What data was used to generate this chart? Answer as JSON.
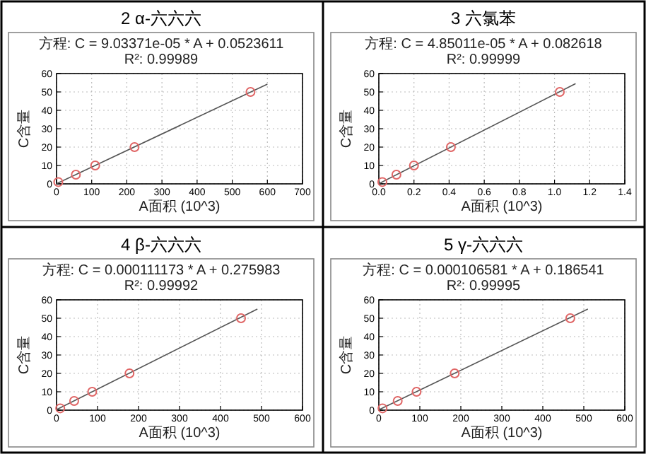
{
  "chart_data": [
    {
      "type": "scatter",
      "title": "2 α-六六六",
      "annotations": [
        "方程: C = 9.03371e-05 * A + 0.0523611",
        "R²: 0.99989"
      ],
      "xlabel": "A面积 (10^3)",
      "ylabel": "C含量",
      "xlim": [
        0,
        700
      ],
      "xticks": [
        0,
        100,
        200,
        300,
        400,
        500,
        600,
        700
      ],
      "ylim": [
        0,
        60
      ],
      "yticks": [
        0,
        10,
        20,
        30,
        40,
        50,
        60
      ],
      "grid": true,
      "series": [
        {
          "type": "scatter",
          "marker": "circle",
          "color": "#e06666",
          "x": [
            5,
            55,
            110,
            222,
            552
          ],
          "values": [
            1,
            5,
            10,
            20,
            50
          ]
        },
        {
          "type": "line",
          "color": "#555555",
          "x": [
            0,
            600
          ],
          "values": [
            0.1,
            54.2
          ]
        }
      ]
    },
    {
      "type": "scatter",
      "title": "3 六氯苯",
      "annotations": [
        "方程: C = 4.85011e-05 * A + 0.082618",
        "R²: 0.99999"
      ],
      "xlabel": "A面积 (10^3)",
      "ylabel": "C含量",
      "xlim": [
        0,
        1.4
      ],
      "xticks": [
        {
          "value": 0,
          "label": "0.0"
        },
        0.2,
        0.4,
        0.6,
        0.8,
        {
          "value": 1,
          "label": "1.0"
        },
        1.2,
        1.4
      ],
      "ylim": [
        0,
        60
      ],
      "yticks": [
        0,
        10,
        20,
        30,
        40,
        50,
        60
      ],
      "grid": true,
      "series": [
        {
          "type": "scatter",
          "marker": "circle",
          "color": "#e06666",
          "x": [
            0.02,
            0.1,
            0.2,
            0.41,
            1.03
          ],
          "values": [
            1,
            5,
            10,
            20,
            50
          ]
        },
        {
          "type": "line",
          "color": "#555555",
          "x": [
            0,
            1.12
          ],
          "values": [
            0.1,
            54.5
          ]
        }
      ]
    },
    {
      "type": "scatter",
      "title": "4 β-六六六",
      "annotations": [
        "方程: C = 0.000111173 * A + 0.275983",
        "R²: 0.99992"
      ],
      "xlabel": "A面积 (10^3)",
      "ylabel": "C含量",
      "xlim": [
        0,
        600
      ],
      "xticks": [
        0,
        100,
        200,
        300,
        400,
        500,
        600
      ],
      "ylim": [
        0,
        60
      ],
      "yticks": [
        0,
        10,
        20,
        30,
        40,
        50,
        60
      ],
      "grid": true,
      "series": [
        {
          "type": "scatter",
          "marker": "circle",
          "color": "#e06666",
          "x": [
            9,
            43,
            87,
            178,
            450
          ],
          "values": [
            1,
            5,
            10,
            20,
            50
          ]
        },
        {
          "type": "line",
          "color": "#555555",
          "x": [
            0,
            490
          ],
          "values": [
            0.3,
            55
          ]
        }
      ]
    },
    {
      "type": "scatter",
      "title": "5 γ-六六六",
      "annotations": [
        "方程: C = 0.000106581 * A + 0.186541",
        "R²: 0.99995"
      ],
      "xlabel": "A面积 (10^3)",
      "ylabel": "C含量",
      "xlim": [
        0,
        600
      ],
      "xticks": [
        0,
        100,
        200,
        300,
        400,
        500,
        600
      ],
      "ylim": [
        0,
        60
      ],
      "yticks": [
        0,
        10,
        20,
        30,
        40,
        50,
        60
      ],
      "grid": true,
      "series": [
        {
          "type": "scatter",
          "marker": "circle",
          "color": "#e06666",
          "x": [
            9,
            46,
            92,
            185,
            467
          ],
          "values": [
            1,
            5,
            10,
            20,
            50
          ]
        },
        {
          "type": "line",
          "color": "#555555",
          "x": [
            0,
            510
          ],
          "values": [
            0.2,
            55
          ]
        }
      ]
    }
  ]
}
